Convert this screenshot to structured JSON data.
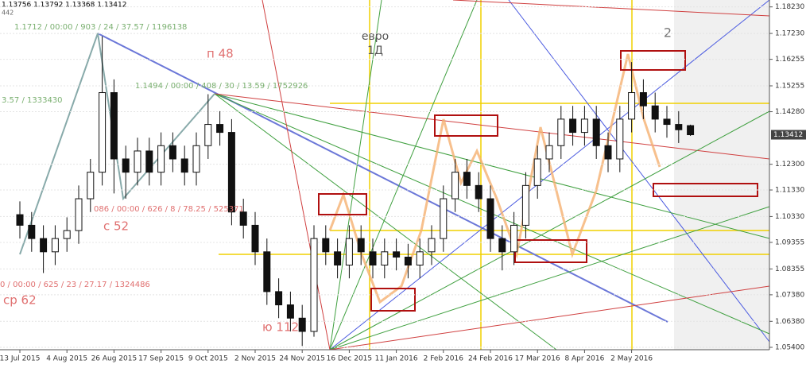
{
  "chart_data": {
    "type": "candlestick",
    "header": "1.13756 1.13792 1.13368 1.13412",
    "header_sub": "442",
    "symbol": "евро",
    "timeframe": "1Д",
    "corner_mark": "2",
    "annotations": [
      "1.1712 / 00:00 / 903 / 24 / 37.57 / 1196138",
      "3.57 / 1333430",
      "1.1494 / 00:00 / 408 / 30 / 13.59 / 1752926",
      "п 48",
      "086 / 00:00 / 626 / 8 / 78.25 / 525371",
      "с 52",
      "0 / 00:00 / 625 / 23 / 27.17 / 1324486",
      "ср 62",
      "ю 112"
    ],
    "current_price": {
      "value": 1.13412,
      "label": "1.13412"
    },
    "categories": [
      "13 Jul 2015",
      null,
      null,
      null,
      "4 Aug 2015",
      null,
      null,
      null,
      "26 Aug 2015",
      null,
      null,
      null,
      "17 Sep 2015",
      null,
      null,
      null,
      "9 Oct 2015",
      null,
      null,
      null,
      "2 Nov 2015",
      null,
      null,
      null,
      "24 Nov 2015",
      null,
      null,
      null,
      "16 Dec 2015",
      null,
      null,
      null,
      "11 Jan 2016",
      null,
      null,
      null,
      "2 Feb 2016",
      null,
      null,
      null,
      "24 Feb 2016",
      null,
      null,
      null,
      "17 Mar 2016",
      null,
      null,
      null,
      "8 Apr 2016",
      null,
      null,
      null,
      "2 May 2016",
      null,
      null,
      null,
      null,
      null
    ],
    "open": [
      1.104,
      1.1,
      1.095,
      1.09,
      1.095,
      1.098,
      1.11,
      1.12,
      1.15,
      1.125,
      1.12,
      1.128,
      1.12,
      1.13,
      1.125,
      1.12,
      1.13,
      1.138,
      1.135,
      1.105,
      1.1,
      1.09,
      1.075,
      1.07,
      1.065,
      1.06,
      1.095,
      1.09,
      1.085,
      1.095,
      1.09,
      1.085,
      1.09,
      1.088,
      1.085,
      1.09,
      1.095,
      1.11,
      1.12,
      1.115,
      1.11,
      1.095,
      1.09,
      1.1,
      1.115,
      1.125,
      1.13,
      1.14,
      1.135,
      1.14,
      1.13,
      1.125,
      1.14,
      1.15,
      1.145,
      1.14,
      1.138,
      1.13756
    ],
    "high": [
      1.109,
      1.105,
      1.1,
      1.1,
      1.103,
      1.115,
      1.125,
      1.1712,
      1.155,
      1.13,
      1.133,
      1.133,
      1.135,
      1.135,
      1.13,
      1.135,
      1.1494,
      1.143,
      1.14,
      1.11,
      1.105,
      1.095,
      1.08,
      1.075,
      1.07,
      1.1,
      1.1,
      1.095,
      1.1,
      1.1,
      1.095,
      1.095,
      1.095,
      1.093,
      1.095,
      1.1,
      1.115,
      1.125,
      1.125,
      1.12,
      1.115,
      1.1,
      1.105,
      1.12,
      1.13,
      1.135,
      1.145,
      1.145,
      1.145,
      1.145,
      1.135,
      1.145,
      1.1615,
      1.155,
      1.15,
      1.145,
      1.143,
      1.13792
    ],
    "low": [
      1.095,
      1.09,
      1.082,
      1.085,
      1.09,
      1.093,
      1.105,
      1.115,
      1.112,
      1.11,
      1.115,
      1.115,
      1.115,
      1.12,
      1.115,
      1.115,
      1.125,
      1.13,
      1.1,
      1.095,
      1.085,
      1.07,
      1.065,
      1.06,
      1.0545,
      1.058,
      1.085,
      1.08,
      1.08,
      1.085,
      1.08,
      1.08,
      1.083,
      1.08,
      1.08,
      1.085,
      1.09,
      1.105,
      1.11,
      1.105,
      1.09,
      1.083,
      1.085,
      1.095,
      1.11,
      1.12,
      1.125,
      1.13,
      1.13,
      1.125,
      1.12,
      1.12,
      1.135,
      1.14,
      1.135,
      1.133,
      1.131,
      1.13368
    ],
    "close": [
      1.1,
      1.095,
      1.09,
      1.095,
      1.098,
      1.11,
      1.12,
      1.15,
      1.125,
      1.12,
      1.128,
      1.12,
      1.13,
      1.125,
      1.12,
      1.13,
      1.138,
      1.135,
      1.105,
      1.1,
      1.09,
      1.075,
      1.07,
      1.065,
      1.06,
      1.095,
      1.09,
      1.085,
      1.095,
      1.09,
      1.085,
      1.09,
      1.088,
      1.085,
      1.09,
      1.095,
      1.11,
      1.12,
      1.115,
      1.11,
      1.095,
      1.09,
      1.1,
      1.115,
      1.125,
      1.13,
      1.14,
      1.135,
      1.14,
      1.13,
      1.125,
      1.14,
      1.15,
      1.145,
      1.14,
      1.138,
      1.136,
      1.13412
    ],
    "ylim": [
      1.0531,
      1.1849
    ],
    "yticks": [
      {
        "value": 1.054,
        "label": "1.05400"
      },
      {
        "value": 1.0638,
        "label": "1.06380"
      },
      {
        "value": 1.0738,
        "label": "1.07380"
      },
      {
        "value": 1.08355,
        "label": "1.08355"
      },
      {
        "value": 1.09355,
        "label": "1.09355"
      },
      {
        "value": 1.1033,
        "label": "1.10330"
      },
      {
        "value": 1.1133,
        "label": "1.11330"
      },
      {
        "value": 1.123,
        "label": "1.12300"
      },
      {
        "value": 1.1428,
        "label": "1.14280"
      },
      {
        "value": 1.15255,
        "label": "1.15255"
      },
      {
        "value": 1.16255,
        "label": "1.16255"
      },
      {
        "value": 1.1723,
        "label": "1.17230"
      },
      {
        "value": 1.1823,
        "label": "1.18230"
      }
    ],
    "grid": true
  }
}
